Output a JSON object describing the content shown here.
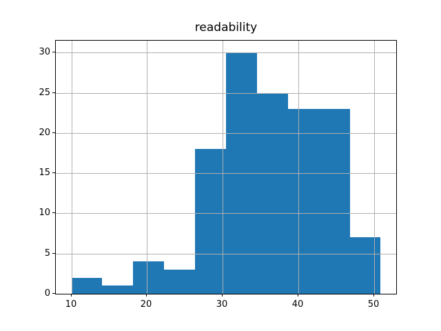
{
  "figure": {
    "background_color": "#ffffff"
  },
  "chart_data": {
    "type": "bar",
    "subtype": "histogram",
    "title": "readability",
    "xlabel": "",
    "ylabel": "",
    "bin_edges": [
      10.0,
      14.09,
      18.18,
      22.27,
      26.36,
      30.45,
      34.54,
      38.63,
      42.72,
      46.81,
      50.9
    ],
    "values": [
      2,
      1,
      4,
      3,
      18,
      30,
      25,
      23,
      23,
      7
    ],
    "xlim": [
      7.95,
      52.95
    ],
    "ylim": [
      0,
      31.5
    ],
    "x_ticks": [
      10,
      20,
      30,
      40,
      50
    ],
    "y_ticks": [
      0,
      5,
      10,
      15,
      20,
      25,
      30
    ],
    "grid": true,
    "legend": null,
    "bar_color": "#1f77b4",
    "grid_color": "#b0b0b0",
    "axis_color": "#000000",
    "text_color": "#000000"
  }
}
